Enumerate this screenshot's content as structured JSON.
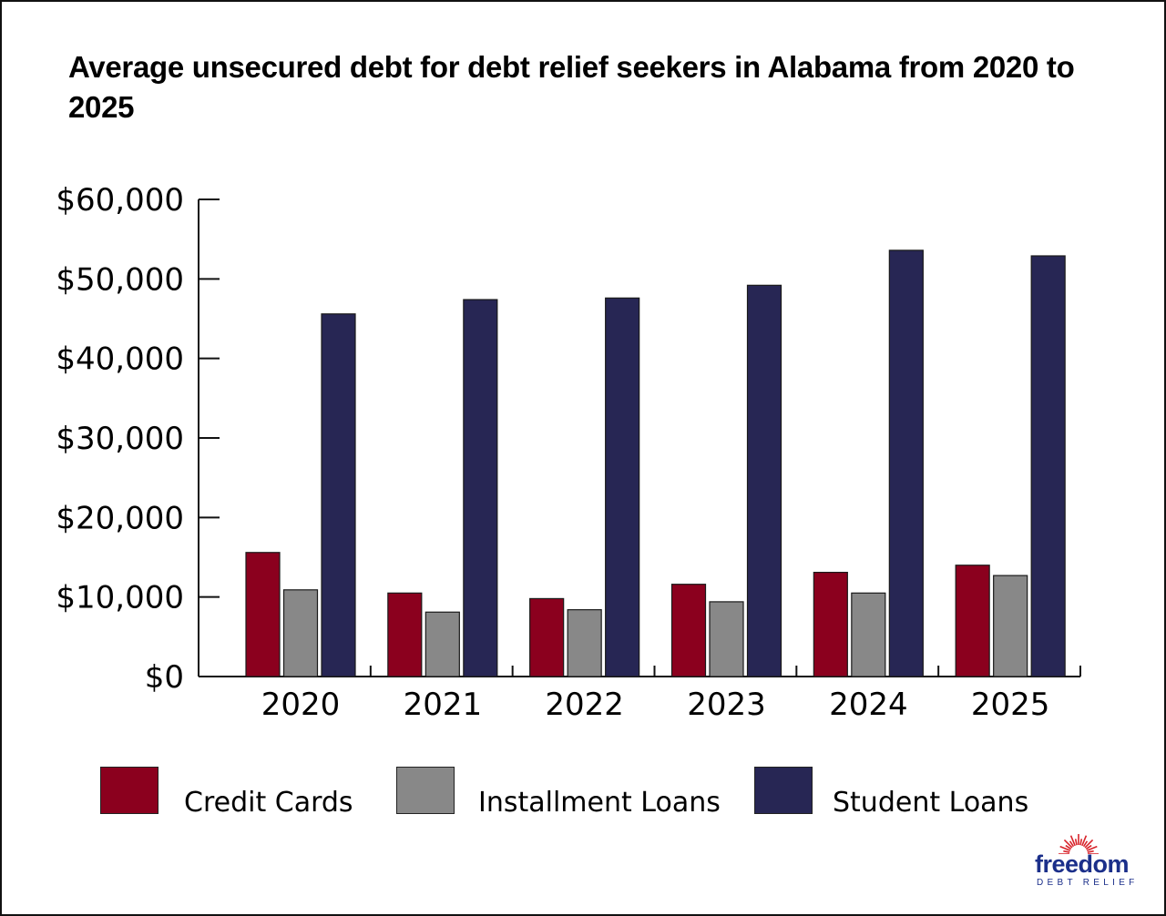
{
  "title": "Average unsecured debt for debt relief seekers in Alabama from 2020 to 2025",
  "colors": {
    "credit_cards": "#8b001e",
    "installment_loans": "#888888",
    "student_loans": "#272654"
  },
  "legend": [
    {
      "label": "Credit Cards",
      "color": "#8b001e"
    },
    {
      "label": "Installment Loans",
      "color": "#888888"
    },
    {
      "label": "Student Loans",
      "color": "#272654"
    }
  ],
  "logo": {
    "word": "freedom",
    "sub": "DEBT RELIEF",
    "ray_color": "#d8232a",
    "text_color": "#1b2f8a"
  },
  "chart_data": {
    "type": "bar",
    "title": "Average unsecured debt for debt relief seekers in Alabama from 2020 to 2025",
    "xlabel": "",
    "ylabel": "",
    "categories": [
      "2020",
      "2021",
      "2022",
      "2023",
      "2024",
      "2025"
    ],
    "series": [
      {
        "name": "Credit Cards",
        "color": "#8b001e",
        "values": [
          15600,
          10500,
          9800,
          11600,
          13100,
          14000
        ]
      },
      {
        "name": "Installment Loans",
        "color": "#888888",
        "values": [
          10900,
          8100,
          8400,
          9400,
          10500,
          12700
        ]
      },
      {
        "name": "Student Loans",
        "color": "#272654",
        "values": [
          45600,
          47400,
          47600,
          49200,
          53600,
          52900
        ]
      }
    ],
    "ylim": [
      0,
      60000
    ],
    "yticks": [
      0,
      10000,
      20000,
      30000,
      40000,
      50000,
      60000
    ],
    "ytick_labels": [
      "$0",
      "$10,000",
      "$20,000",
      "$30,000",
      "$40,000",
      "$50,000",
      "$60,000"
    ],
    "grid": false,
    "legend_position": "bottom"
  }
}
